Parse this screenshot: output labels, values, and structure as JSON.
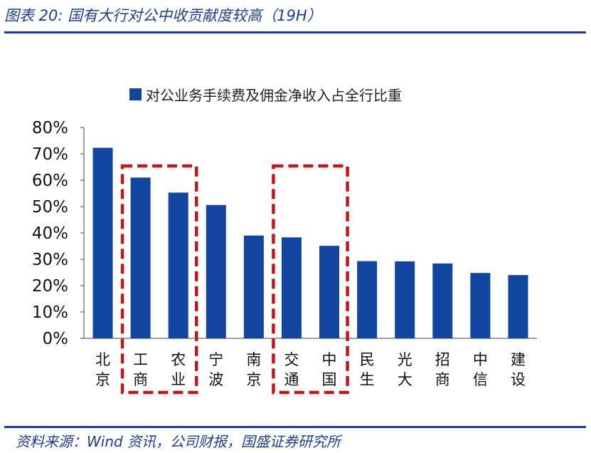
{
  "figure_title": "图表 20:  国有大行对公中收贡献度较高（19H）",
  "source": "资料来源：Wind 资讯，公司财报，国盛证券研究所",
  "colors": {
    "bar": "#1245a0",
    "highlight_box": "#c0171d",
    "brand": "#1f3d8f"
  },
  "chart_data": {
    "type": "bar",
    "title": "",
    "xlabel": "",
    "ylabel": "",
    "legend": {
      "position": "top",
      "entries": [
        "对公业务手续费及佣金净收入占全行比重"
      ]
    },
    "categories": [
      "北京",
      "工商",
      "农业",
      "宁波",
      "南京",
      "交通",
      "中国",
      "民生",
      "光大",
      "招商",
      "中信",
      "建设"
    ],
    "series": [
      {
        "name": "对公业务手续费及佣金净收入占全行比重",
        "values": [
          72.3,
          61.0,
          55.3,
          50.6,
          39.0,
          38.3,
          35.1,
          29.3,
          29.2,
          28.4,
          24.8,
          24.0
        ]
      }
    ],
    "ylim": [
      0,
      80
    ],
    "yticks": [
      "0%",
      "10%",
      "20%",
      "30%",
      "40%",
      "50%",
      "60%",
      "70%",
      "80%"
    ],
    "ytick_values": [
      0,
      10,
      20,
      30,
      40,
      50,
      60,
      70,
      80
    ],
    "grid": false,
    "highlight_groups": [
      {
        "categories": [
          "工商",
          "农业"
        ],
        "style": "dashed-box"
      },
      {
        "categories": [
          "交通",
          "中国"
        ],
        "style": "dashed-box"
      }
    ]
  }
}
